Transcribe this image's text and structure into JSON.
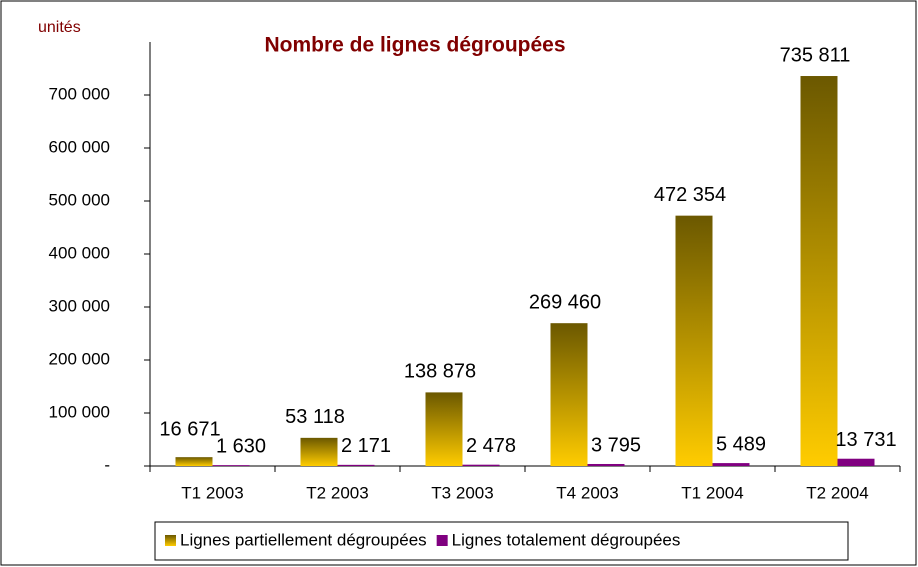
{
  "chart_data": {
    "type": "bar",
    "title": "Nombre de lignes dégroupées",
    "unit_label": "unités",
    "categories": [
      "T1 2003",
      "T2 2003",
      "T3 2003",
      "T4 2003",
      "T1 2004",
      "T2 2004"
    ],
    "series": [
      {
        "name": "Lignes partiellement dégroupées",
        "color": "#ffcc00",
        "gradient_color": "#6b5800",
        "values": [
          16671,
          53118,
          138878,
          269460,
          472354,
          735811
        ],
        "value_labels": [
          "16 671",
          "53 118",
          "138 878",
          "269 460",
          "472 354",
          "735 811"
        ]
      },
      {
        "name": "Lignes totalement dégroupées",
        "color": "#800080",
        "values": [
          1630,
          2171,
          2478,
          3795,
          5489,
          13731
        ],
        "value_labels": [
          "1 630",
          "2 171",
          "2 478",
          "3 795",
          "5 489",
          "13 731"
        ]
      }
    ],
    "ylim": [
      0,
      800000
    ],
    "yticks": [
      {
        "value": 0,
        "label": "-"
      },
      {
        "value": 100000,
        "label": "100 000"
      },
      {
        "value": 200000,
        "label": "200 000"
      },
      {
        "value": 300000,
        "label": "300 000"
      },
      {
        "value": 400000,
        "label": "400 000"
      },
      {
        "value": 500000,
        "label": "500 000"
      },
      {
        "value": 600000,
        "label": "600 000"
      },
      {
        "value": 700000,
        "label": "700 000"
      }
    ],
    "legend": "bottom"
  }
}
